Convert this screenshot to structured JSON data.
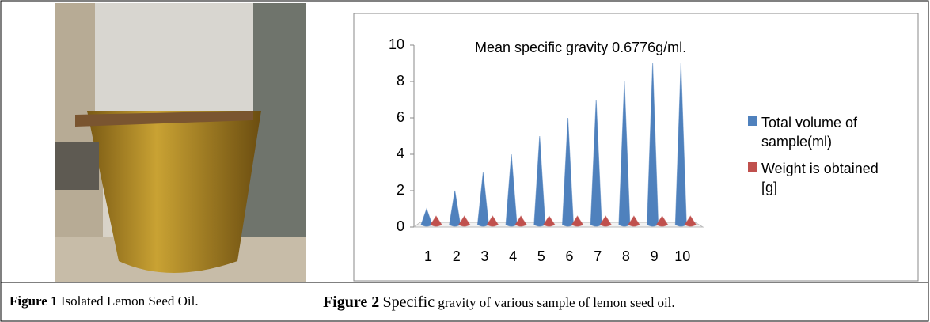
{
  "figure1": {
    "label": "Figure 1",
    "caption": "Isolated Lemon Seed Oil."
  },
  "figure2": {
    "label": "Figure 2",
    "caption_lead": "Specific",
    "caption": "gravity of various sample of lemon seed oil."
  },
  "chart_data": {
    "type": "cone",
    "title": "Mean specific gravity 0.6776g/ml.",
    "categories": [
      "1",
      "2",
      "3",
      "4",
      "5",
      "6",
      "7",
      "8",
      "9",
      "10"
    ],
    "series": [
      {
        "name": "Total volume of sample(ml)",
        "color": "#4f81bd",
        "values": [
          1,
          2,
          3,
          4,
          5,
          6,
          7,
          8,
          9,
          9
        ]
      },
      {
        "name": "Weight is obtained [g]",
        "color": "#c0504d",
        "values": [
          0.6,
          0.6,
          0.6,
          0.6,
          0.6,
          0.6,
          0.6,
          0.6,
          0.6,
          0.6
        ]
      }
    ],
    "ylim": [
      0,
      10
    ],
    "yticks": [
      0,
      2,
      4,
      6,
      8,
      10
    ],
    "legend": "right"
  }
}
